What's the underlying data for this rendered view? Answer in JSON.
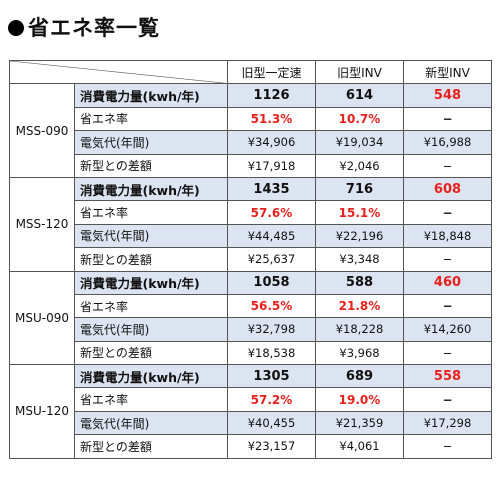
{
  "title": "省エネ率一覧",
  "header": {
    "col1": "旧型一定速",
    "col2": "旧型INV",
    "col3": "新型INV"
  },
  "row_labels": {
    "power": "消費電力量(kwh/年)",
    "save": "省エネ率",
    "cost": "電気代(年間)",
    "diff": "新型との差額"
  },
  "models": [
    {
      "name": "MSS-090",
      "power": [
        "1126",
        "614",
        "548"
      ],
      "save": [
        "51.3%",
        "10.7%",
        "−"
      ],
      "cost": [
        "¥34,906",
        "¥19,034",
        "¥16,988"
      ],
      "diff": [
        "¥17,918",
        "¥2,046",
        "−"
      ]
    },
    {
      "name": "MSS-120",
      "power": [
        "1435",
        "716",
        "608"
      ],
      "save": [
        "57.6%",
        "15.1%",
        "−"
      ],
      "cost": [
        "¥44,485",
        "¥22,196",
        "¥18,848"
      ],
      "diff": [
        "¥25,637",
        "¥3,348",
        "−"
      ]
    },
    {
      "name": "MSU-090",
      "power": [
        "1058",
        "588",
        "460"
      ],
      "save": [
        "56.5%",
        "21.8%",
        "−"
      ],
      "cost": [
        "¥32,798",
        "¥18,228",
        "¥14,260"
      ],
      "diff": [
        "¥18,538",
        "¥3,968",
        "−"
      ]
    },
    {
      "name": "MSU-120",
      "power": [
        "1305",
        "689",
        "558"
      ],
      "save": [
        "57.2%",
        "19.0%",
        "−"
      ],
      "cost": [
        "¥40,455",
        "¥21,359",
        "¥17,298"
      ],
      "diff": [
        "¥23,157",
        "¥4,061",
        "−"
      ]
    }
  ],
  "colors": {
    "highlight_red": "#e8211d",
    "row_shade": "#dce3f1",
    "border": "#555555"
  }
}
